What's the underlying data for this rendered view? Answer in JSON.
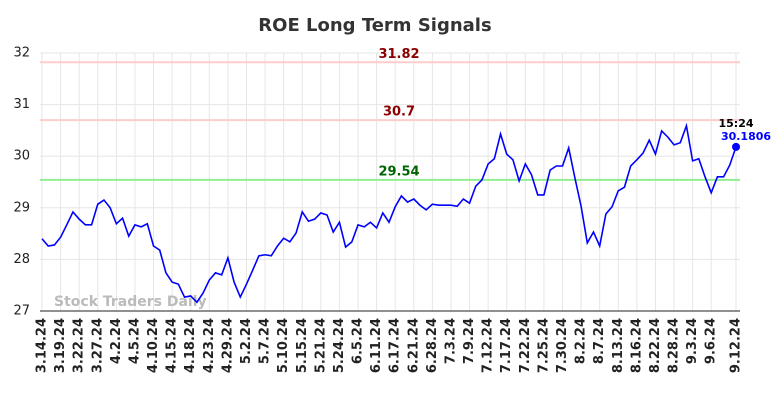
{
  "chart_data": {
    "type": "line",
    "title": "ROE Long Term Signals",
    "watermark": "Stock Traders Daily",
    "categories": [
      "3.14.24",
      null,
      null,
      "3.19.24",
      null,
      null,
      "3.22.24",
      null,
      null,
      "3.27.24",
      null,
      null,
      "4.2.24",
      null,
      null,
      "4.5.24",
      null,
      null,
      "4.10.24",
      null,
      null,
      "4.15.24",
      null,
      null,
      "4.18.24",
      null,
      null,
      "4.23.24",
      null,
      null,
      "4.29.24",
      null,
      null,
      "5.2.24",
      null,
      null,
      "5.7.24",
      null,
      null,
      "5.10.24",
      null,
      null,
      "5.15.24",
      null,
      null,
      "5.21.24",
      null,
      null,
      "5.24.24",
      null,
      null,
      "6.5.24",
      null,
      null,
      "6.11.24",
      null,
      null,
      "6.17.24",
      null,
      null,
      "6.21.24",
      null,
      null,
      "6.28.24",
      null,
      null,
      "7.3.24",
      null,
      null,
      "7.9.24",
      null,
      null,
      "7.12.24",
      null,
      null,
      "7.17.24",
      null,
      null,
      "7.22.24",
      null,
      null,
      "7.25.24",
      null,
      null,
      "7.30.24",
      null,
      null,
      "8.2.24",
      null,
      null,
      "8.7.24",
      null,
      null,
      "8.13.24",
      null,
      null,
      "8.16.24",
      null,
      null,
      "8.22.24",
      null,
      null,
      "8.28.24",
      null,
      null,
      "9.3.24",
      null,
      null,
      "9.6.24",
      null,
      null,
      null,
      "9.12.24"
    ],
    "values": [
      28.4,
      28.26,
      28.28,
      28.43,
      28.67,
      28.92,
      28.78,
      28.67,
      28.67,
      29.07,
      29.15,
      29.0,
      28.69,
      28.8,
      28.45,
      28.67,
      28.63,
      28.69,
      28.26,
      28.18,
      27.74,
      27.56,
      27.52,
      27.27,
      27.29,
      27.17,
      27.35,
      27.6,
      27.74,
      27.7,
      28.03,
      27.56,
      27.27,
      27.52,
      27.79,
      28.07,
      28.09,
      28.07,
      28.26,
      28.41,
      28.34,
      28.51,
      28.92,
      28.74,
      28.78,
      28.9,
      28.86,
      28.53,
      28.72,
      28.24,
      28.34,
      28.67,
      28.63,
      28.72,
      28.61,
      28.9,
      28.72,
      29.02,
      29.23,
      29.11,
      29.17,
      29.05,
      28.96,
      29.07,
      29.05,
      29.05,
      29.05,
      29.03,
      29.17,
      29.09,
      29.42,
      29.54,
      29.85,
      29.95,
      30.43,
      30.04,
      29.93,
      29.52,
      29.85,
      29.64,
      29.25,
      29.25,
      29.73,
      29.81,
      29.81,
      30.16,
      29.58,
      29.03,
      28.32,
      28.53,
      28.26,
      28.88,
      29.02,
      29.33,
      29.4,
      29.81,
      29.93,
      30.06,
      30.31,
      30.04,
      30.49,
      30.37,
      30.22,
      30.26,
      30.59,
      29.91,
      29.95,
      29.6,
      29.29,
      29.6,
      29.6,
      29.83,
      30.1806
    ],
    "color": "#0000ff",
    "last_time": "15:24",
    "levels": [
      {
        "value": 31.82,
        "color": "#ffcccc",
        "label_color": "#8b0000"
      },
      {
        "value": 30.7,
        "color": "#ffcccc",
        "label_color": "#8b0000"
      },
      {
        "value": 29.54,
        "color": "#90ee90",
        "label_color": "#006400"
      }
    ],
    "ylim": [
      27,
      32
    ],
    "yticks": [
      27,
      28,
      29,
      30,
      31,
      32
    ],
    "grid": true
  }
}
